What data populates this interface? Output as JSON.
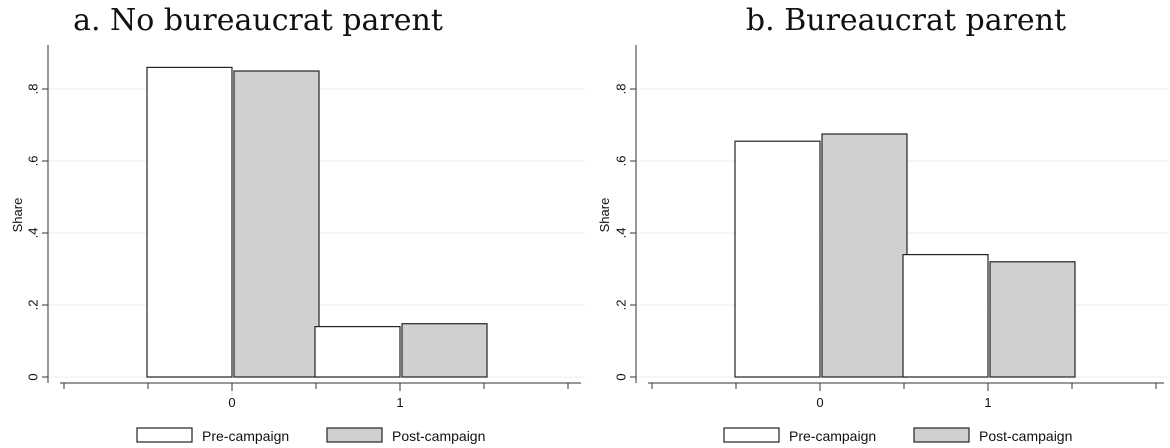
{
  "chart_data": [
    {
      "type": "bar",
      "title": "a. No bureaucrat parent",
      "xlabel": "",
      "ylabel": "Share",
      "categories": [
        "0",
        "1"
      ],
      "ylim": [
        0,
        0.9
      ],
      "yticks": [
        "0",
        ".2",
        ".4",
        ".6",
        ".8"
      ],
      "grid": true,
      "legend": "bottom",
      "series": [
        {
          "name": "Pre-campaign",
          "values": [
            0.86,
            0.14
          ],
          "color": "#ffffff"
        },
        {
          "name": "Post-campaign",
          "values": [
            0.85,
            0.148
          ],
          "color": "#d0d0d0"
        }
      ]
    },
    {
      "type": "bar",
      "title": "b. Bureaucrat parent",
      "xlabel": "",
      "ylabel": "Share",
      "categories": [
        "0",
        "1"
      ],
      "ylim": [
        0,
        0.9
      ],
      "yticks": [
        "0",
        ".2",
        ".4",
        ".6",
        ".8"
      ],
      "grid": true,
      "legend": "bottom",
      "series": [
        {
          "name": "Pre-campaign",
          "values": [
            0.655,
            0.34
          ],
          "color": "#ffffff"
        },
        {
          "name": "Post-campaign",
          "values": [
            0.675,
            0.32
          ],
          "color": "#d0d0d0"
        }
      ]
    }
  ]
}
